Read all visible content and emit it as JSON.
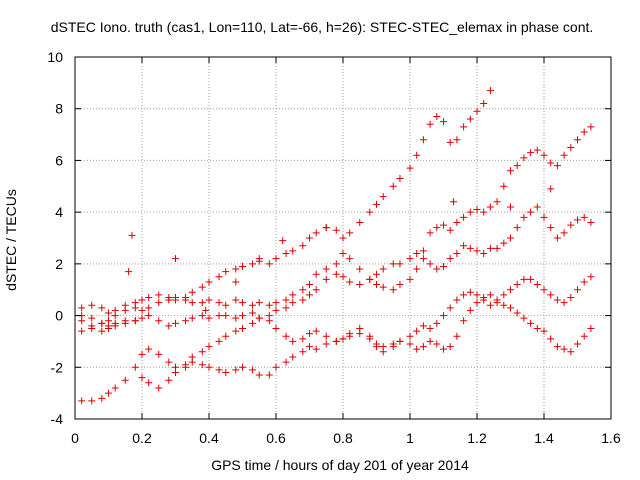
{
  "chart_data": {
    "type": "scatter",
    "title": "dSTEC Iono. truth (cas1, Lon=110, Lat=-66, h=26): STEC-STEC_elemax in phase cont.",
    "xlabel": "GPS time / hours of day 201 of year 2014",
    "ylabel": "dSTEC  / TECUs",
    "xlim": [
      0,
      1.6
    ],
    "ylim": [
      -4,
      10
    ],
    "xticks": [
      "0",
      "0.2",
      "0.4",
      "0.6",
      "0.8",
      "1",
      "1.2",
      "1.4",
      "1.6"
    ],
    "yticks": [
      "-4",
      "-2",
      "0",
      "2",
      "4",
      "6",
      "8",
      "10"
    ],
    "grid": true,
    "marker": "+",
    "color": "#e00000",
    "series": [
      {
        "x": [
          0.02,
          0.05,
          0.08,
          0.1,
          0.12,
          0.15,
          0.18,
          0.2,
          0.22,
          0.25,
          0.28,
          0.3,
          0.33,
          0.35,
          0.38,
          0.4,
          0.43,
          0.45,
          0.48,
          0.5,
          0.53,
          0.55,
          0.58,
          0.6,
          0.63,
          0.65,
          0.68,
          0.7,
          0.72,
          0.75,
          0.78,
          0.8,
          0.82,
          0.85,
          0.88,
          0.9,
          0.92,
          0.95,
          0.97,
          1.0,
          1.02,
          1.04,
          1.06,
          1.08,
          1.1,
          1.12,
          1.14,
          1.16,
          1.18,
          1.2,
          1.22,
          1.24
        ],
        "y": [
          0.3,
          0.4,
          0.3,
          0.1,
          0.2,
          0.4,
          0.5,
          0.6,
          0.7,
          0.8,
          0.7,
          0.6,
          0.7,
          0.9,
          1.1,
          1.3,
          1.5,
          1.7,
          1.8,
          1.9,
          2.0,
          2.1,
          2.0,
          2.2,
          2.4,
          2.5,
          2.7,
          3.0,
          3.2,
          3.4,
          3.3,
          3.0,
          3.2,
          3.6,
          4.0,
          4.3,
          4.6,
          5.0,
          5.3,
          5.7,
          6.2,
          6.8,
          7.4,
          7.7,
          7.5,
          6.7,
          6.8,
          7.3,
          7.6,
          7.9,
          8.2,
          8.7
        ]
      },
      {
        "x": [
          0.02,
          0.05,
          0.08,
          0.1,
          0.12,
          0.15,
          0.18,
          0.2,
          0.22,
          0.25,
          0.28,
          0.3,
          0.33,
          0.35,
          0.38,
          0.4,
          0.43,
          0.45,
          0.48,
          0.5,
          0.53,
          0.55,
          0.58,
          0.6,
          0.63,
          0.65,
          0.68,
          0.7,
          0.72,
          0.75,
          0.78,
          0.8,
          0.82,
          0.85,
          0.88,
          0.9,
          0.92,
          0.95,
          0.97,
          1.0,
          1.02,
          1.04,
          1.06,
          1.08,
          1.1,
          1.12,
          1.14,
          1.16,
          1.18,
          1.2,
          1.22,
          1.24,
          1.26,
          1.28,
          1.3,
          1.32,
          1.34,
          1.36,
          1.38,
          1.4,
          1.42,
          1.44,
          1.46,
          1.48,
          1.5,
          1.52,
          1.54
        ],
        "y": [
          -0.2,
          -0.4,
          -0.3,
          -0.2,
          0.0,
          0.2,
          0.3,
          0.2,
          0.3,
          0.5,
          0.6,
          0.7,
          0.6,
          0.5,
          0.5,
          0.6,
          0.5,
          0.4,
          0.6,
          0.5,
          0.4,
          0.5,
          0.4,
          0.5,
          0.6,
          0.8,
          1.0,
          1.2,
          1.6,
          1.8,
          2.0,
          2.4,
          2.2,
          1.8,
          1.4,
          1.2,
          1.1,
          1.0,
          1.2,
          1.4,
          1.8,
          2.5,
          3.2,
          3.4,
          3.5,
          3.3,
          3.6,
          3.8,
          4.0,
          4.1,
          4.0,
          4.2,
          4.4,
          5.0,
          5.6,
          5.8,
          6.1,
          6.3,
          6.4,
          6.2,
          5.9,
          5.8,
          6.2,
          6.5,
          6.8,
          7.1,
          7.3
        ]
      },
      {
        "x": [
          0.02,
          0.05,
          0.08,
          0.1,
          0.12,
          0.15,
          0.18,
          0.2,
          0.22,
          0.25,
          0.28,
          0.3,
          0.33,
          0.35,
          0.38,
          0.4,
          0.43,
          0.45,
          0.48,
          0.5,
          0.53,
          0.55,
          0.58,
          0.6,
          0.63,
          0.65,
          0.68,
          0.7,
          0.72,
          0.75,
          0.78,
          0.8,
          0.82,
          0.85,
          0.88,
          0.9,
          0.92,
          0.95,
          0.97,
          1.0,
          1.02,
          1.04,
          1.06,
          1.08,
          1.1,
          1.12,
          1.14,
          1.16,
          1.18,
          1.2,
          1.22,
          1.24,
          1.26,
          1.28,
          1.3,
          1.32,
          1.34,
          1.36,
          1.38,
          1.4,
          1.42,
          1.44,
          1.46,
          1.48,
          1.5,
          1.52,
          1.54
        ],
        "y": [
          0.0,
          -0.1,
          -0.3,
          -0.5,
          -0.4,
          -0.3,
          -0.2,
          -0.1,
          0.0,
          -0.2,
          -0.4,
          -0.3,
          -0.2,
          -0.1,
          0.0,
          -0.1,
          0.0,
          0.0,
          -0.1,
          0.0,
          0.1,
          -0.1,
          0.0,
          0.2,
          0.3,
          0.5,
          0.6,
          0.8,
          1.0,
          1.4,
          1.6,
          1.5,
          1.3,
          1.2,
          1.4,
          1.6,
          1.8,
          2.0,
          2.0,
          2.2,
          2.4,
          2.2,
          2.0,
          1.8,
          1.9,
          2.2,
          2.4,
          2.7,
          2.6,
          2.5,
          2.4,
          2.6,
          2.6,
          2.8,
          3.0,
          3.4,
          3.8,
          4.0,
          4.2,
          3.8,
          3.4,
          3.0,
          3.2,
          3.5,
          3.7,
          3.8,
          3.6
        ]
      },
      {
        "x": [
          0.02,
          0.05,
          0.08,
          0.1,
          0.12,
          0.15,
          0.18,
          0.2,
          0.22,
          0.25,
          0.28,
          0.3,
          0.33,
          0.35,
          0.38,
          0.4,
          0.43,
          0.45,
          0.48,
          0.5,
          0.53,
          0.55,
          0.58,
          0.6,
          0.63,
          0.65,
          0.68,
          0.7,
          0.72,
          0.75,
          0.78,
          0.8,
          0.82,
          0.85,
          0.88,
          0.9,
          0.92,
          0.95,
          0.97,
          1.0,
          1.02,
          1.04,
          1.06,
          1.08,
          1.1,
          1.12,
          1.14,
          1.16,
          1.18,
          1.2,
          1.22,
          1.24,
          1.26,
          1.28,
          1.3,
          1.32,
          1.34,
          1.36,
          1.38,
          1.4,
          1.42,
          1.44,
          1.46,
          1.48,
          1.5,
          1.52,
          1.54
        ],
        "y": [
          -3.3,
          -3.3,
          -3.2,
          -3.0,
          -2.8,
          -2.5,
          -2.0,
          -1.5,
          -1.3,
          -1.5,
          -1.8,
          -2.0,
          -1.9,
          -1.8,
          -1.9,
          -2.0,
          -2.1,
          -2.2,
          -2.1,
          -2.0,
          -2.1,
          -2.3,
          -2.3,
          -2.0,
          -1.8,
          -1.6,
          -1.4,
          -1.2,
          -1.3,
          -1.1,
          -1.0,
          -0.9,
          -0.8,
          -0.7,
          -0.9,
          -1.1,
          -1.2,
          -1.1,
          -1.0,
          -0.8,
          -0.6,
          -0.4,
          -0.5,
          -0.3,
          0.0,
          0.3,
          0.6,
          0.8,
          0.9,
          0.8,
          0.6,
          0.4,
          0.5,
          0.8,
          1.0,
          1.2,
          1.4,
          1.4,
          1.2,
          1.0,
          0.8,
          0.6,
          0.5,
          0.7,
          1.0,
          1.3,
          1.5
        ]
      },
      {
        "x": [
          0.02,
          0.05,
          0.08,
          0.1,
          0.12,
          0.15,
          0.18,
          0.2,
          0.22,
          0.25,
          0.28,
          0.3,
          0.33,
          0.35,
          0.38,
          0.4,
          0.43,
          0.45,
          0.48,
          0.5,
          0.53,
          0.55,
          0.58,
          0.6,
          0.63,
          0.65,
          0.68,
          0.7,
          0.72,
          0.75,
          0.78,
          0.8,
          0.82,
          0.85,
          0.88,
          0.9,
          0.92,
          0.95,
          0.97,
          1.0,
          1.02,
          1.04,
          1.06,
          1.08,
          1.1,
          1.12,
          1.14,
          1.16,
          1.18,
          1.2,
          1.22,
          1.24,
          1.26,
          1.28,
          1.3,
          1.32,
          1.34,
          1.36,
          1.38,
          1.4,
          1.42,
          1.44,
          1.46,
          1.48,
          1.5,
          1.52,
          1.54
        ],
        "y": [
          -0.6,
          -0.5,
          -0.6,
          -0.4,
          -0.3,
          -0.2,
          -0.2,
          -2.4,
          -2.6,
          -2.8,
          -2.5,
          -2.2,
          -2.0,
          -1.6,
          -1.4,
          -1.2,
          -1.0,
          -0.8,
          -0.6,
          -0.5,
          -0.3,
          -0.1,
          -0.2,
          -0.5,
          -0.8,
          -1.0,
          -0.9,
          -0.7,
          -0.6,
          -0.8,
          -1.0,
          -0.9,
          -0.7,
          -0.5,
          -0.8,
          -1.2,
          -1.4,
          -1.2,
          -1.0,
          -1.1,
          -1.3,
          -1.2,
          -1.0,
          -1.1,
          -1.3,
          -1.2,
          -0.8,
          -0.2,
          0.2,
          0.5,
          0.7,
          0.8,
          0.6,
          0.4,
          0.3,
          0.1,
          -0.1,
          -0.3,
          -0.5,
          -0.6,
          -0.9,
          -1.2,
          -1.3,
          -1.4,
          -1.1,
          -0.8,
          -0.5
        ]
      },
      {
        "x": [
          0.16,
          0.17,
          0.3,
          0.39,
          0.48,
          0.55,
          0.62,
          0.75,
          1.13,
          1.3,
          1.42
        ],
        "y": [
          1.7,
          3.1,
          2.2,
          0.2,
          1.3,
          2.2,
          2.9,
          3.4,
          4.4,
          4.2,
          4.9
        ]
      }
    ]
  }
}
